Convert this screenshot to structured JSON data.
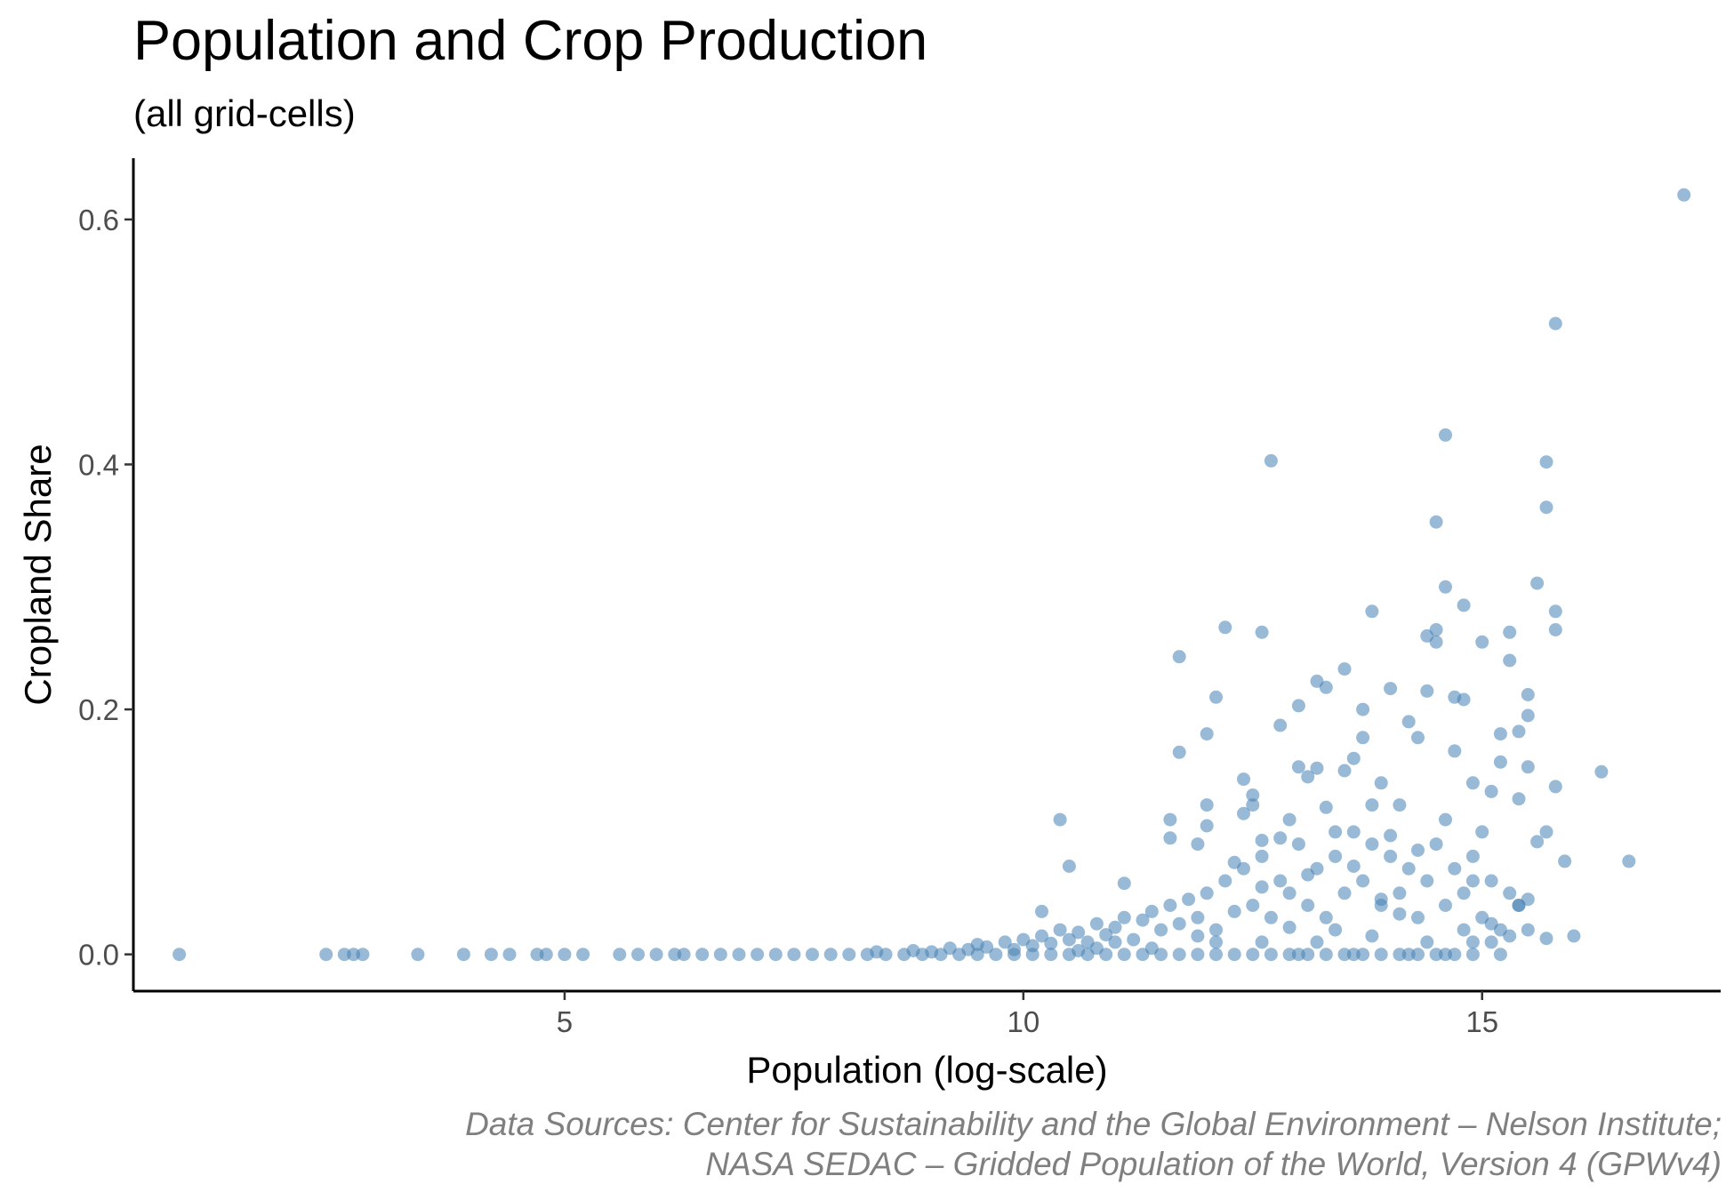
{
  "chart": {
    "title": "Population and Crop Production",
    "subtitle": "(all grid-cells)",
    "caption_line1": "Data Sources: Center for Sustainability and the Global Environment – Nelson Institute;",
    "caption_line2": "NASA SEDAC – Gridded Population of the World, Version 4 (GPWv4)"
  },
  "colors": {
    "point": "#4682b4",
    "axis": "#000000",
    "tick_text": "#4d4d4d",
    "caption": "#7f7f7f"
  },
  "chart_data": {
    "type": "scatter",
    "title": "Population and Crop Production",
    "subtitle": "(all grid-cells)",
    "xlabel": "Population (log-scale)",
    "ylabel": "Cropland Share",
    "xlim": [
      0.3,
      17.6
    ],
    "ylim": [
      -0.03,
      0.65
    ],
    "x_ticks": [
      5,
      10,
      15
    ],
    "x_tick_labels": [
      "5",
      "10",
      "15"
    ],
    "y_ticks": [
      0.0,
      0.2,
      0.4,
      0.6
    ],
    "y_tick_labels": [
      "0.0",
      "0.2",
      "0.4",
      "0.6"
    ],
    "grid": false,
    "legend": "none",
    "point_color": "#4682b4",
    "point_opacity": 0.55,
    "series": [
      {
        "points": [
          [
            0.8,
            0.0
          ],
          [
            2.4,
            0.0
          ],
          [
            2.6,
            0.0
          ],
          [
            2.7,
            0.0
          ],
          [
            2.8,
            0.0
          ],
          [
            3.4,
            0.0
          ],
          [
            3.9,
            0.0
          ],
          [
            4.2,
            0.0
          ],
          [
            4.4,
            0.0
          ],
          [
            4.7,
            0.0
          ],
          [
            4.8,
            0.0
          ],
          [
            5.0,
            0.0
          ],
          [
            5.2,
            0.0
          ],
          [
            5.6,
            0.0
          ],
          [
            5.8,
            0.0
          ],
          [
            6.0,
            0.0
          ],
          [
            6.2,
            0.0
          ],
          [
            6.3,
            0.0
          ],
          [
            6.5,
            0.0
          ],
          [
            6.7,
            0.0
          ],
          [
            6.9,
            0.0
          ],
          [
            7.1,
            0.0
          ],
          [
            7.3,
            0.0
          ],
          [
            7.5,
            0.0
          ],
          [
            7.7,
            0.0
          ],
          [
            7.9,
            0.0
          ],
          [
            8.1,
            0.0
          ],
          [
            8.3,
            0.0
          ],
          [
            8.5,
            0.0
          ],
          [
            8.7,
            0.0
          ],
          [
            8.9,
            0.0
          ],
          [
            9.1,
            0.0
          ],
          [
            9.3,
            0.0
          ],
          [
            9.5,
            0.0
          ],
          [
            9.7,
            0.0
          ],
          [
            9.9,
            0.0
          ],
          [
            10.1,
            0.0
          ],
          [
            10.3,
            0.0
          ],
          [
            10.5,
            0.0
          ],
          [
            10.7,
            0.0
          ],
          [
            10.9,
            0.0
          ],
          [
            11.1,
            0.0
          ],
          [
            11.3,
            0.0
          ],
          [
            11.5,
            0.0
          ],
          [
            11.7,
            0.0
          ],
          [
            11.9,
            0.0
          ],
          [
            12.1,
            0.0
          ],
          [
            12.3,
            0.0
          ],
          [
            12.5,
            0.0
          ],
          [
            12.7,
            0.0
          ],
          [
            12.9,
            0.0
          ],
          [
            13.1,
            0.0
          ],
          [
            13.3,
            0.0
          ],
          [
            13.5,
            0.0
          ],
          [
            13.7,
            0.0
          ],
          [
            13.9,
            0.0
          ],
          [
            14.1,
            0.0
          ],
          [
            14.3,
            0.0
          ],
          [
            14.5,
            0.0
          ],
          [
            14.7,
            0.0
          ],
          [
            14.9,
            0.0
          ],
          [
            8.4,
            0.002
          ],
          [
            8.8,
            0.003
          ],
          [
            9.0,
            0.002
          ],
          [
            9.2,
            0.005
          ],
          [
            9.4,
            0.004
          ],
          [
            9.5,
            0.008
          ],
          [
            9.6,
            0.006
          ],
          [
            9.8,
            0.01
          ],
          [
            9.9,
            0.004
          ],
          [
            10.0,
            0.012
          ],
          [
            10.1,
            0.007
          ],
          [
            10.2,
            0.015
          ],
          [
            10.3,
            0.009
          ],
          [
            10.4,
            0.02
          ],
          [
            10.5,
            0.012
          ],
          [
            10.6,
            0.018
          ],
          [
            10.7,
            0.01
          ],
          [
            10.8,
            0.025
          ],
          [
            10.9,
            0.016
          ],
          [
            11.0,
            0.022
          ],
          [
            11.1,
            0.03
          ],
          [
            11.2,
            0.012
          ],
          [
            11.3,
            0.028
          ],
          [
            11.4,
            0.035
          ],
          [
            11.5,
            0.02
          ],
          [
            11.6,
            0.04
          ],
          [
            11.7,
            0.025
          ],
          [
            11.8,
            0.045
          ],
          [
            11.9,
            0.03
          ],
          [
            12.0,
            0.05
          ],
          [
            12.1,
            0.02
          ],
          [
            12.2,
            0.06
          ],
          [
            12.3,
            0.035
          ],
          [
            12.4,
            0.07
          ],
          [
            12.5,
            0.04
          ],
          [
            12.6,
            0.08
          ],
          [
            12.7,
            0.03
          ],
          [
            12.8,
            0.06
          ],
          [
            12.9,
            0.05
          ],
          [
            13.0,
            0.09
          ],
          [
            13.1,
            0.04
          ],
          [
            13.2,
            0.07
          ],
          [
            13.3,
            0.03
          ],
          [
            13.4,
            0.08
          ],
          [
            13.5,
            0.05
          ],
          [
            13.6,
            0.1
          ],
          [
            13.7,
            0.06
          ],
          [
            13.8,
            0.09
          ],
          [
            13.9,
            0.04
          ],
          [
            14.0,
            0.08
          ],
          [
            14.1,
            0.05
          ],
          [
            14.2,
            0.07
          ],
          [
            14.3,
            0.03
          ],
          [
            14.4,
            0.06
          ],
          [
            14.5,
            0.09
          ],
          [
            14.6,
            0.04
          ],
          [
            14.7,
            0.07
          ],
          [
            14.8,
            0.05
          ],
          [
            14.9,
            0.08
          ],
          [
            15.0,
            0.03
          ],
          [
            15.1,
            0.06
          ],
          [
            15.2,
            0.02
          ],
          [
            15.3,
            0.05
          ],
          [
            15.4,
            0.04
          ],
          [
            10.4,
            0.11
          ],
          [
            10.5,
            0.072
          ],
          [
            10.2,
            0.035
          ],
          [
            11.1,
            0.058
          ],
          [
            11.6,
            0.11
          ],
          [
            11.6,
            0.095
          ],
          [
            11.7,
            0.165
          ],
          [
            11.7,
            0.243
          ],
          [
            12.0,
            0.122
          ],
          [
            12.0,
            0.105
          ],
          [
            12.0,
            0.18
          ],
          [
            12.1,
            0.21
          ],
          [
            12.2,
            0.267
          ],
          [
            12.4,
            0.143
          ],
          [
            12.5,
            0.122
          ],
          [
            12.6,
            0.263
          ],
          [
            12.6,
            0.093
          ],
          [
            12.7,
            0.403
          ],
          [
            12.8,
            0.187
          ],
          [
            12.9,
            0.11
          ],
          [
            13.0,
            0.203
          ],
          [
            13.0,
            0.153
          ],
          [
            13.1,
            0.145
          ],
          [
            13.2,
            0.223
          ],
          [
            13.2,
            0.152
          ],
          [
            13.3,
            0.218
          ],
          [
            13.4,
            0.1
          ],
          [
            13.5,
            0.15
          ],
          [
            13.5,
            0.233
          ],
          [
            13.6,
            0.16
          ],
          [
            13.7,
            0.2
          ],
          [
            13.7,
            0.177
          ],
          [
            13.8,
            0.28
          ],
          [
            13.9,
            0.14
          ],
          [
            14.0,
            0.217
          ],
          [
            14.1,
            0.122
          ],
          [
            14.2,
            0.19
          ],
          [
            14.3,
            0.177
          ],
          [
            14.4,
            0.26
          ],
          [
            14.4,
            0.215
          ],
          [
            14.5,
            0.265
          ],
          [
            14.5,
            0.255
          ],
          [
            14.5,
            0.353
          ],
          [
            14.6,
            0.3
          ],
          [
            14.6,
            0.424
          ],
          [
            14.7,
            0.21
          ],
          [
            14.7,
            0.166
          ],
          [
            14.8,
            0.285
          ],
          [
            14.8,
            0.208
          ],
          [
            14.9,
            0.14
          ],
          [
            15.0,
            0.255
          ],
          [
            15.1,
            0.133
          ],
          [
            15.2,
            0.18
          ],
          [
            15.2,
            0.157
          ],
          [
            15.3,
            0.24
          ],
          [
            15.3,
            0.263
          ],
          [
            15.4,
            0.182
          ],
          [
            15.4,
            0.127
          ],
          [
            15.5,
            0.212
          ],
          [
            15.5,
            0.195
          ],
          [
            15.5,
            0.153
          ],
          [
            15.6,
            0.303
          ],
          [
            15.7,
            0.402
          ],
          [
            15.7,
            0.365
          ],
          [
            15.7,
            0.1
          ],
          [
            15.8,
            0.28
          ],
          [
            15.8,
            0.265
          ],
          [
            15.8,
            0.137
          ],
          [
            15.9,
            0.076
          ],
          [
            15.6,
            0.092
          ],
          [
            15.4,
            0.04
          ],
          [
            15.5,
            0.02
          ],
          [
            15.7,
            0.013
          ],
          [
            16.0,
            0.015
          ],
          [
            16.3,
            0.149
          ],
          [
            16.6,
            0.076
          ],
          [
            15.8,
            0.515
          ],
          [
            17.2,
            0.62
          ],
          [
            14.9,
            0.06
          ],
          [
            15.0,
            0.1
          ],
          [
            13.8,
            0.122
          ],
          [
            14.0,
            0.097
          ],
          [
            13.3,
            0.12
          ],
          [
            12.5,
            0.13
          ],
          [
            12.4,
            0.115
          ],
          [
            12.8,
            0.095
          ],
          [
            13.6,
            0.072
          ],
          [
            14.3,
            0.085
          ],
          [
            14.1,
            0.033
          ],
          [
            12.9,
            0.022
          ],
          [
            13.0,
            0.0
          ],
          [
            13.6,
            0.0
          ],
          [
            14.2,
            0.0
          ],
          [
            14.6,
            0.0
          ],
          [
            15.2,
            0.0
          ],
          [
            15.5,
            0.045
          ],
          [
            15.1,
            0.025
          ],
          [
            12.3,
            0.075
          ],
          [
            11.9,
            0.09
          ],
          [
            12.6,
            0.055
          ],
          [
            13.1,
            0.065
          ],
          [
            13.9,
            0.045
          ],
          [
            14.6,
            0.11
          ],
          [
            14.8,
            0.02
          ],
          [
            15.1,
            0.01
          ],
          [
            13.4,
            0.02
          ],
          [
            12.1,
            0.01
          ],
          [
            11.4,
            0.005
          ],
          [
            11.9,
            0.015
          ],
          [
            12.6,
            0.01
          ],
          [
            13.2,
            0.01
          ],
          [
            13.8,
            0.015
          ],
          [
            14.4,
            0.01
          ],
          [
            14.9,
            0.01
          ],
          [
            15.3,
            0.015
          ],
          [
            11.0,
            0.01
          ],
          [
            10.8,
            0.005
          ],
          [
            10.6,
            0.003
          ]
        ]
      }
    ]
  }
}
